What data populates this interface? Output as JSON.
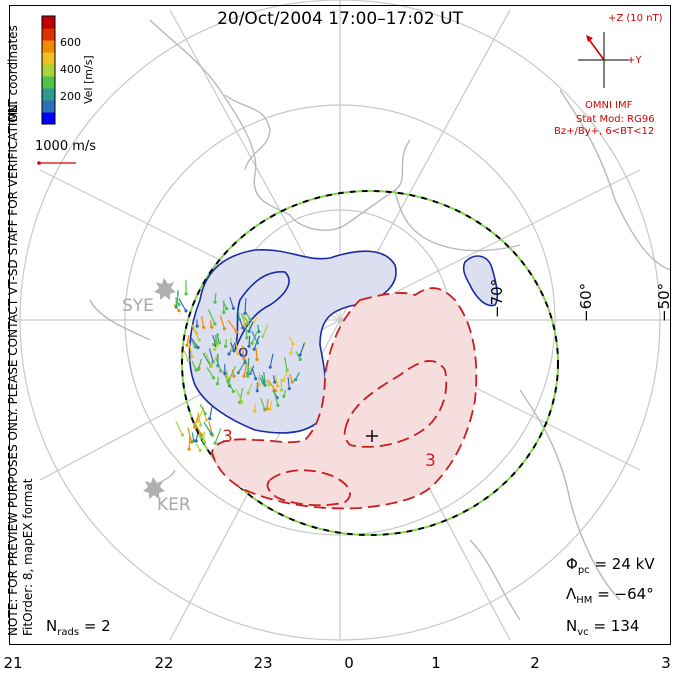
{
  "title": "20/Oct/2004 17:00–17:02 UT",
  "side_notes": {
    "mlt_coordinates": "MLT coordinates",
    "preview_note": "NOTE: FOR PREVIEW PURPOSES ONLY. PLEASE CONTACT VT-SD STAFF FOR VERIFICATION.",
    "fit_order": "FitOrder: 8, mapEX format"
  },
  "color_scale": {
    "label": "Vel [m/s]",
    "ticks": [
      "600",
      "400",
      "200"
    ],
    "colors": [
      "#0000ff",
      "#2e6fbd",
      "#2e9a8f",
      "#52c24a",
      "#a6d63a",
      "#f0c020",
      "#f08a00",
      "#e03000",
      "#c00000"
    ]
  },
  "reference_vector": {
    "label": "1000 m/s"
  },
  "imf": {
    "z_label": "+Z (10 nT)",
    "y_label": "+Y",
    "source": "OMNI IMF",
    "stat_mod": "Stat Mod: RG96",
    "condition": "Bz+/By+, 6<BT<12"
  },
  "stations": [
    "SYE",
    "KER"
  ],
  "lat_labels": [
    "−70°",
    "−60°",
    "−50°"
  ],
  "mlt_axis": [
    "21",
    "22",
    "23",
    "0",
    "1",
    "2",
    "3"
  ],
  "stats": {
    "phi_pc_sym": "Φ",
    "phi_pc_sub": "pc",
    "phi_pc_val": "=  24 kV",
    "lambda_hm_sym": "Λ",
    "lambda_hm_sub": "HM",
    "lambda_hm_val": "= −64°",
    "n_vc_sym": "N",
    "n_vc_sub": "vc",
    "n_vc_val": "=  134",
    "n_rads_sym": "N",
    "n_rads_sub": "rads",
    "n_rads_val": "=  2"
  },
  "colors": {
    "negative_cell": "#1a2aa0",
    "negative_fill": "#dcdff0",
    "positive_cell": "#c81e1e",
    "positive_fill": "#f6dede",
    "hmb_dash_a": "#000000",
    "hmb_dash_b": "#7fd84a",
    "coastline": "#b9b9b9"
  }
}
